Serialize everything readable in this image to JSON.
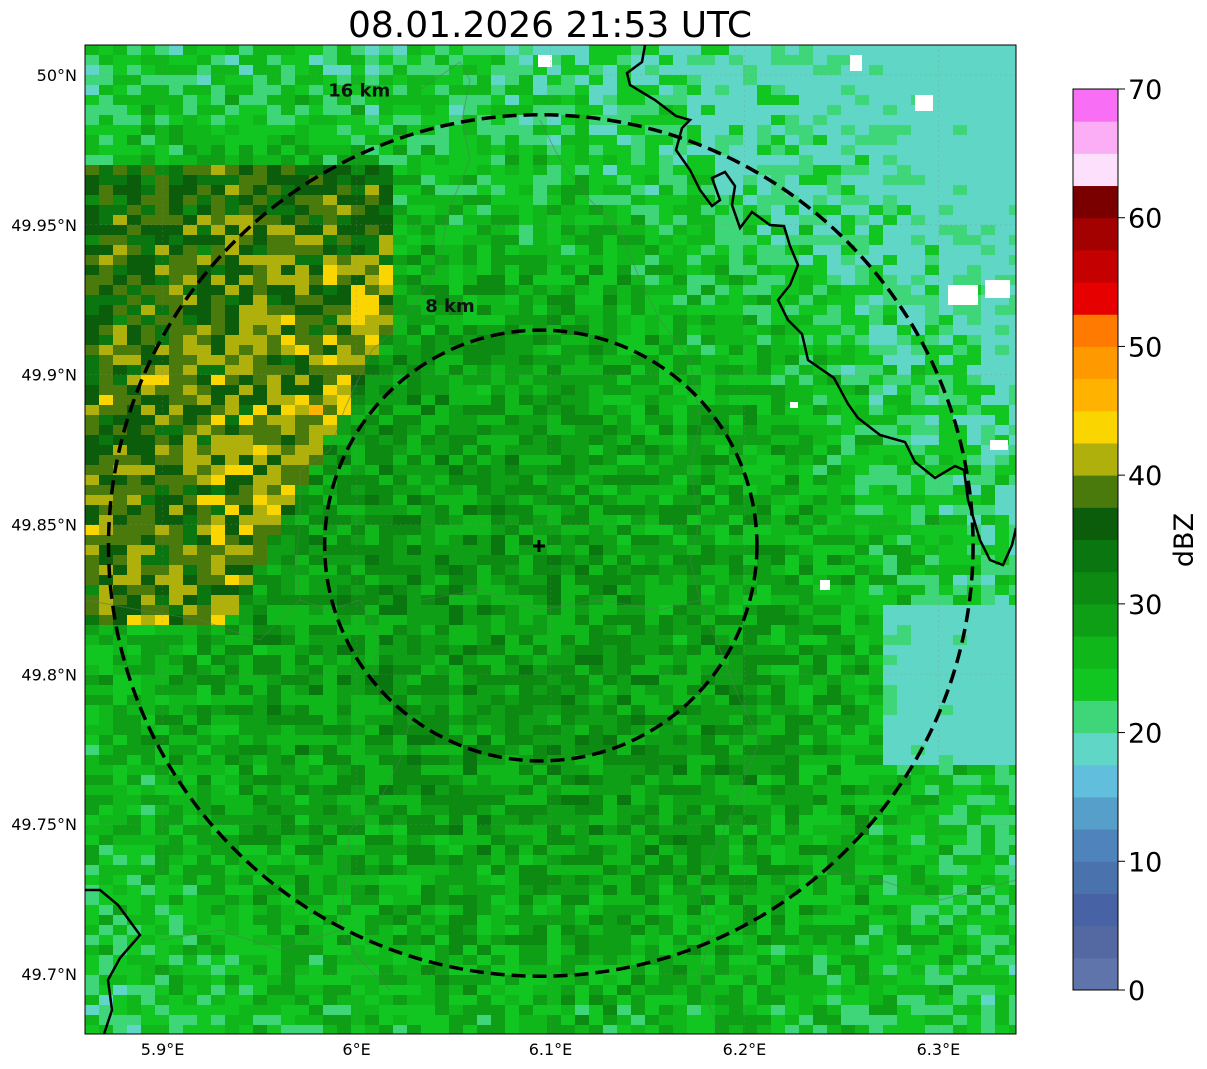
{
  "title": "08.01.2026 21:53 UTC",
  "map": {
    "lon_range": [
      5.86,
      6.34
    ],
    "lat_range": [
      49.68,
      50.01
    ],
    "radar_site": {
      "lon": 6.095,
      "lat": 49.843
    },
    "lon_ticks": [
      {
        "value": 5.9,
        "label": "5.9°E"
      },
      {
        "value": 6.0,
        "label": "6°E"
      },
      {
        "value": 6.1,
        "label": "6.1°E"
      },
      {
        "value": 6.2,
        "label": "6.2°E"
      },
      {
        "value": 6.3,
        "label": "6.3°E"
      }
    ],
    "lat_ticks": [
      {
        "value": 50.0,
        "label": "50°N"
      },
      {
        "value": 49.95,
        "label": "49.95°N"
      },
      {
        "value": 49.9,
        "label": "49.9°N"
      },
      {
        "value": 49.85,
        "label": "49.85°N"
      },
      {
        "value": 49.8,
        "label": "49.8°N"
      },
      {
        "value": 49.75,
        "label": "49.75°N"
      },
      {
        "value": 49.7,
        "label": "49.7°N"
      }
    ],
    "range_rings": [
      {
        "km": 8,
        "label": "8 km"
      },
      {
        "km": 16,
        "label": "16 km"
      }
    ],
    "border_style": "solid-black",
    "ring_style": "dashed-black"
  },
  "colorbar": {
    "label": "dBZ",
    "min": 0,
    "max": 70,
    "step": 2.5,
    "ticks": [
      {
        "value": 0,
        "label": "0"
      },
      {
        "value": 10,
        "label": "10"
      },
      {
        "value": 20,
        "label": "20"
      },
      {
        "value": 30,
        "label": "30"
      },
      {
        "value": 40,
        "label": "40"
      },
      {
        "value": 50,
        "label": "50"
      },
      {
        "value": 60,
        "label": "60"
      },
      {
        "value": 70,
        "label": "70"
      }
    ],
    "colors": [
      "#5e74aa",
      "#5469a2",
      "#4863a5",
      "#4a73ae",
      "#4f83bb",
      "#579fcb",
      "#61bfdd",
      "#5fd6c6",
      "#3fd67a",
      "#11c621",
      "#10b71a",
      "#0e9f16",
      "#0c8a12",
      "#0a760f",
      "#0b5c0b",
      "#4a7a0c",
      "#afb00b",
      "#fbd500",
      "#ffb300",
      "#ff9900",
      "#ff7a00",
      "#e60000",
      "#c40000",
      "#a30000",
      "#7a0000",
      "#fde0fc",
      "#fbadf6",
      "#f86ef5",
      "#ee34ef"
    ]
  }
}
